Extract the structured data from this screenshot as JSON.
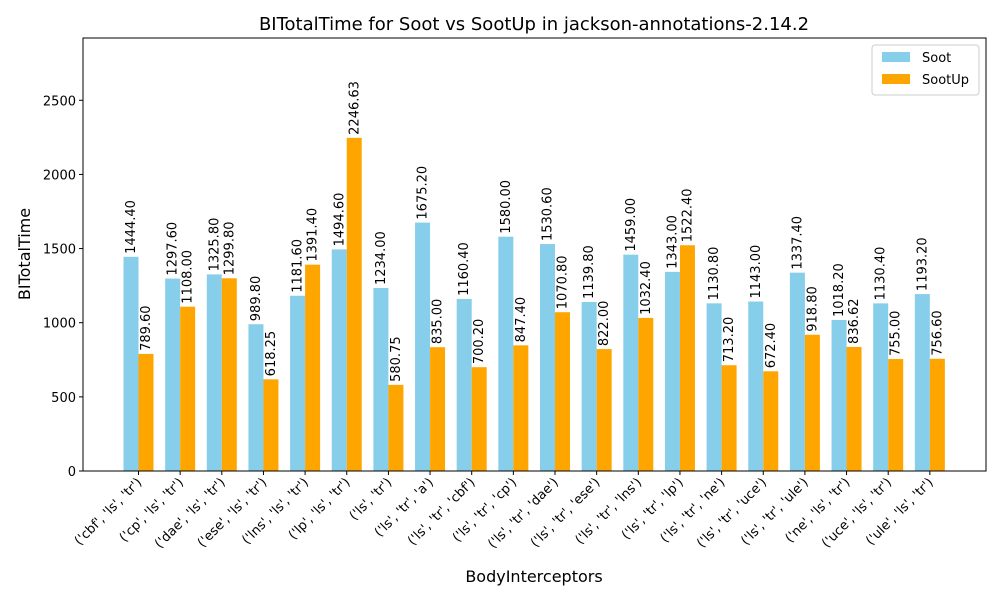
{
  "chart_data": {
    "type": "bar",
    "title": "BITotalTime for Soot vs SootUp in jackson-annotations-2.14.2",
    "xlabel": "BodyInterceptors",
    "ylabel": "BITotalTime",
    "ylim": [
      0,
      2920
    ],
    "yticks": [
      0,
      500,
      1000,
      1500,
      2000,
      2500
    ],
    "legend_position": "top-right",
    "categories": [
      "('cbf', 'ls', 'tr')",
      "('cp', 'ls', 'tr')",
      "('dae', 'ls', 'tr')",
      "('ese', 'ls', 'tr')",
      "('lns', 'ls', 'tr')",
      "('lp', 'ls', 'tr')",
      "('ls', 'tr')",
      "('ls', 'tr', 'a')",
      "('ls', 'tr', 'cbf')",
      "('ls', 'tr', 'cp')",
      "('ls', 'tr', 'dae')",
      "('ls', 'tr', 'ese')",
      "('ls', 'tr', 'lns')",
      "('ls', 'tr', 'lp')",
      "('ls', 'tr', 'ne')",
      "('ls', 'tr', 'uce')",
      "('ls', 'tr', 'ule')",
      "('ne', 'ls', 'tr')",
      "('uce', 'ls', 'tr')",
      "('ule', 'ls', 'tr')"
    ],
    "series": [
      {
        "name": "Soot",
        "color": "#87ceeb",
        "values": [
          1444.4,
          1297.6,
          1325.8,
          989.8,
          1181.6,
          1494.6,
          1234.0,
          1675.2,
          1160.4,
          1580.0,
          1530.6,
          1139.8,
          1459.0,
          1343.0,
          1130.8,
          1143.0,
          1337.4,
          1018.2,
          1130.4,
          1193.2
        ],
        "labels": [
          "1444.40",
          "1297.60",
          "1325.80",
          "989.80",
          "1181.60",
          "1494.60",
          "1234.00",
          "1675.20",
          "1160.40",
          "1580.00",
          "1530.60",
          "1139.80",
          "1459.00",
          "1343.00",
          "1130.80",
          "1143.00",
          "1337.40",
          "1018.20",
          "1130.40",
          "1193.20"
        ]
      },
      {
        "name": "SootUp",
        "color": "#ffa500",
        "values": [
          789.6,
          1108.0,
          1299.8,
          618.25,
          1391.4,
          2246.63,
          580.75,
          835.0,
          700.2,
          847.4,
          1070.8,
          822.0,
          1032.4,
          1522.4,
          713.2,
          672.4,
          918.8,
          836.62,
          755.0,
          756.6
        ],
        "labels": [
          "789.60",
          "1108.00",
          "1299.80",
          "618.25",
          "1391.40",
          "2246.63",
          "580.75",
          "835.00",
          "700.20",
          "847.40",
          "1070.80",
          "822.00",
          "1032.40",
          "1522.40",
          "713.20",
          "672.40",
          "918.80",
          "836.62",
          "755.00",
          "756.60"
        ]
      }
    ]
  }
}
